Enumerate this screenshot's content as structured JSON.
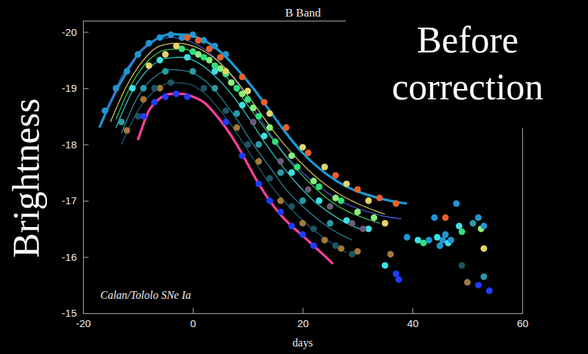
{
  "chart_data": {
    "type": "line",
    "title": "B Band",
    "x_label": "days",
    "y_label": "Brightness",
    "annotations": [
      "Calan/Tololo SNe Ia",
      "Before correction"
    ],
    "xlim": [
      -20,
      60
    ],
    "ylim": [
      -15,
      -20.2
    ],
    "xticks": [
      -20,
      0,
      20,
      40,
      60
    ],
    "yticks": [
      -20,
      -19,
      -18,
      -17,
      -16,
      -15
    ],
    "grid": false,
    "series": [
      {
        "type": "line",
        "color": "#1a98d0",
        "line_style": "thick",
        "x": [
          -17,
          -15,
          -12,
          -10,
          -7,
          -4,
          -1,
          2,
          5,
          8,
          11,
          14,
          17,
          20,
          24,
          28,
          32,
          36,
          39
        ],
        "values": [
          -18.3,
          -18.75,
          -19.3,
          -19.6,
          -19.85,
          -19.96,
          -19.95,
          -19.85,
          -19.65,
          -19.35,
          -19.0,
          -18.6,
          -18.2,
          -17.85,
          -17.5,
          -17.25,
          -17.1,
          -17.0,
          -16.95
        ]
      },
      {
        "type": "line",
        "color": "#4a58d8",
        "line_style": "solid",
        "x": [
          -16,
          -13,
          -10,
          -7,
          -4,
          -1,
          2,
          5,
          8,
          11,
          14,
          17,
          20,
          23,
          26,
          29,
          32,
          35,
          38
        ],
        "values": [
          -18.5,
          -19.2,
          -19.6,
          -19.85,
          -19.9,
          -19.85,
          -19.7,
          -19.45,
          -19.1,
          -18.65,
          -18.2,
          -17.8,
          -17.5,
          -17.25,
          -17.05,
          -16.9,
          -16.8,
          -16.72,
          -16.68
        ]
      },
      {
        "type": "line",
        "color": "#d8d060",
        "line_style": "solid",
        "x": [
          -15,
          -12,
          -9,
          -6,
          -3,
          0,
          3,
          6,
          9,
          12,
          15,
          18,
          21,
          24,
          27,
          30,
          33,
          35
        ],
        "values": [
          -18.4,
          -19.05,
          -19.5,
          -19.75,
          -19.8,
          -19.75,
          -19.6,
          -19.35,
          -19.0,
          -18.6,
          -18.2,
          -17.85,
          -17.55,
          -17.3,
          -17.1,
          -16.95,
          -16.83,
          -16.76
        ]
      },
      {
        "type": "line",
        "color": "#3cc860",
        "line_style": "solid",
        "x": [
          -14,
          -11,
          -8,
          -5,
          -2,
          1,
          4,
          7,
          10,
          13,
          16,
          19,
          22,
          25,
          28,
          31,
          34
        ],
        "values": [
          -18.45,
          -19.1,
          -19.5,
          -19.68,
          -19.7,
          -19.6,
          -19.4,
          -19.1,
          -18.7,
          -18.3,
          -17.9,
          -17.55,
          -17.25,
          -17.0,
          -16.82,
          -16.7,
          -16.6
        ]
      },
      {
        "type": "line",
        "color": "#30c8c8",
        "line_style": "solid",
        "x": [
          -14,
          -11,
          -8,
          -5,
          -2,
          1,
          4,
          7,
          10,
          13,
          16,
          19,
          22,
          25,
          28,
          31
        ],
        "values": [
          -18.3,
          -18.95,
          -19.35,
          -19.53,
          -19.55,
          -19.45,
          -19.22,
          -18.9,
          -18.5,
          -18.05,
          -17.65,
          -17.3,
          -17.0,
          -16.78,
          -16.6,
          -16.48
        ]
      },
      {
        "type": "line",
        "color": "#2b8c9c",
        "line_style": "solid",
        "x": [
          -13,
          -10,
          -7,
          -4,
          -1,
          2,
          5,
          8,
          11,
          14,
          17,
          20,
          23,
          26,
          29
        ],
        "values": [
          -18.2,
          -18.85,
          -19.2,
          -19.33,
          -19.3,
          -19.15,
          -18.85,
          -18.45,
          -18.0,
          -17.6,
          -17.2,
          -16.9,
          -16.65,
          -16.45,
          -16.3
        ]
      },
      {
        "type": "line",
        "color": "#1f6070",
        "line_style": "solid",
        "x": [
          -13,
          -10,
          -7,
          -4,
          -1,
          2,
          5,
          8,
          11,
          14,
          17,
          20,
          23,
          26,
          28
        ],
        "values": [
          -18.0,
          -18.6,
          -18.95,
          -19.1,
          -19.08,
          -18.92,
          -18.6,
          -18.2,
          -17.75,
          -17.3,
          -16.95,
          -16.65,
          -16.4,
          -16.2,
          -16.08
        ]
      },
      {
        "type": "line",
        "color": "#ff3f9f",
        "line_style": "thick",
        "x": [
          -10,
          -8,
          -6,
          -4,
          -2,
          0,
          2,
          4,
          6,
          8,
          10,
          12,
          14,
          16,
          18,
          20,
          22,
          24,
          25.5
        ],
        "values": [
          -18.08,
          -18.6,
          -18.82,
          -18.9,
          -18.9,
          -18.85,
          -18.75,
          -18.55,
          -18.3,
          -18.0,
          -17.65,
          -17.3,
          -17.0,
          -16.75,
          -16.55,
          -16.38,
          -16.2,
          -16.02,
          -15.88
        ]
      },
      {
        "type": "scatter",
        "color": "#2196d3",
        "marker": "circle",
        "x": [
          -16,
          -14,
          -12,
          -10,
          -8,
          -6,
          -4,
          -2,
          0,
          2,
          4,
          6
        ],
        "values": [
          -18.6,
          -19.0,
          -19.3,
          -19.6,
          -19.8,
          -19.9,
          -19.95,
          -19.9,
          -19.95,
          -19.85,
          -19.75,
          -19.6
        ]
      },
      {
        "type": "scatter",
        "color": "#e8602c",
        "marker": "circle",
        "x": [
          -1,
          1,
          3,
          5,
          9,
          13,
          17,
          21,
          26,
          30,
          34,
          37
        ],
        "values": [
          -19.9,
          -19.85,
          -19.7,
          -19.55,
          -19.2,
          -18.75,
          -18.3,
          -17.85,
          -17.45,
          -17.2,
          -17.05,
          -16.95
        ]
      },
      {
        "type": "scatter",
        "color": "#2ee07a",
        "marker": "circle",
        "x": [
          -2,
          0,
          2,
          4,
          6,
          8,
          10,
          12,
          15,
          19,
          23,
          27
        ],
        "values": [
          -19.7,
          -19.65,
          -19.55,
          -19.4,
          -19.25,
          -19.0,
          -18.8,
          -18.5,
          -18.05,
          -17.6,
          -17.25,
          -17.0
        ]
      },
      {
        "type": "scatter",
        "color": "#8af07a",
        "marker": "circle",
        "x": [
          1,
          3,
          5,
          7,
          9,
          11,
          14,
          18,
          22,
          26,
          30,
          33
        ],
        "values": [
          -19.6,
          -19.5,
          -19.35,
          -19.1,
          -18.9,
          -18.65,
          -18.3,
          -17.8,
          -17.35,
          -17.05,
          -16.8,
          -16.7
        ]
      },
      {
        "type": "scatter",
        "color": "#e2d46a",
        "marker": "circle",
        "x": [
          -8,
          -5,
          -3,
          6,
          10,
          14,
          20,
          24,
          28,
          32,
          35
        ],
        "values": [
          -19.4,
          -19.6,
          -19.75,
          -19.3,
          -18.95,
          -18.55,
          -17.95,
          -17.6,
          -17.3,
          -17.0,
          -16.6
        ]
      },
      {
        "type": "scatter",
        "color": "#a3783c",
        "marker": "circle",
        "x": [
          -12,
          -9,
          -6,
          8,
          12,
          16,
          20,
          24,
          27,
          30
        ],
        "values": [
          -18.25,
          -18.8,
          -19.0,
          -18.3,
          -17.7,
          -17.0,
          -16.6,
          -16.3,
          -16.15,
          -16.1
        ]
      },
      {
        "type": "scatter",
        "color": "#1c5565",
        "marker": "circle",
        "x": [
          -10,
          -7,
          -4,
          2,
          6,
          10,
          14,
          18,
          22,
          26,
          29
        ],
        "values": [
          -18.5,
          -19.0,
          -19.1,
          -19.0,
          -18.6,
          -18.0,
          -17.4,
          -16.9,
          -16.5,
          -16.2,
          -16.05
        ]
      },
      {
        "type": "scatter",
        "color": "#1f3cff",
        "marker": "circle",
        "x": [
          -9,
          -7,
          -5,
          -3,
          -1,
          6,
          9,
          12,
          14,
          16,
          18,
          20,
          22
        ],
        "values": [
          -18.5,
          -18.75,
          -18.85,
          -18.9,
          -18.85,
          -18.4,
          -17.8,
          -17.3,
          -17.0,
          -16.8,
          -16.55,
          -16.4,
          -16.2
        ]
      },
      {
        "type": "scatter",
        "color": "#3ee0e0",
        "marker": "circle",
        "x": [
          -11,
          -6,
          -1,
          4,
          9,
          13,
          18,
          23,
          28,
          32
        ],
        "values": [
          -19.0,
          -19.5,
          -19.55,
          -19.3,
          -18.7,
          -18.15,
          -17.5,
          -17.0,
          -16.65,
          -16.5
        ]
      },
      {
        "type": "scatter",
        "color": "#6a5a7a",
        "marker": "circle",
        "x": [
          11,
          16,
          21,
          25,
          29,
          31
        ],
        "values": [
          -18.4,
          -17.7,
          -17.2,
          -16.9,
          -16.6,
          -16.5
        ]
      },
      {
        "type": "scatter",
        "color": "#2a9aa8",
        "marker": "circle",
        "x": [
          -13,
          -9,
          -5,
          0,
          4,
          8,
          12,
          16,
          20,
          25
        ],
        "values": [
          -18.4,
          -19.0,
          -19.3,
          -19.3,
          -19.0,
          -18.55,
          -18.0,
          -17.5,
          -17.0,
          -16.6
        ]
      },
      {
        "type": "scatter",
        "marker": "circle",
        "x": [
          35,
          36,
          37,
          37.5,
          39,
          41,
          42,
          43,
          44,
          44.5,
          45,
          45.5,
          46,
          46,
          46.5,
          47,
          48,
          48.5,
          49,
          49,
          50,
          51,
          52,
          52,
          52.5,
          53,
          53,
          53,
          54
        ],
        "values": [
          -15.85,
          -16.05,
          -15.7,
          -15.6,
          -16.35,
          -16.3,
          -16.25,
          -16.3,
          -16.7,
          -16.35,
          -16.2,
          -16.3,
          -16.7,
          -16.4,
          -16.25,
          -16.3,
          -16.95,
          -16.55,
          -16.45,
          -15.85,
          -15.55,
          -16.6,
          -16.7,
          -15.5,
          -16.5,
          -16.55,
          -15.65,
          -16.15,
          -15.4
        ],
        "colors": [
          "#3ee0e0",
          "#a3783c",
          "#1f3cff",
          "#1f3cff",
          "#2196d3",
          "#3ee0e0",
          "#2ee07a",
          "#2196d3",
          "#2196d3",
          "#3ee0e0",
          "#2196d3",
          "#2196d3",
          "#e8602c",
          "#2196d3",
          "#3ee0e0",
          "#2196d3",
          "#2196d3",
          "#3ee0e0",
          "#2ee07a",
          "#1c5565",
          "#a3783c",
          "#2a9aa8",
          "#2196d3",
          "#1f3cff",
          "#8af07a",
          "#2196d3",
          "#2a9aa8",
          "#e2d46a",
          "#1f3cff"
        ]
      }
    ]
  }
}
